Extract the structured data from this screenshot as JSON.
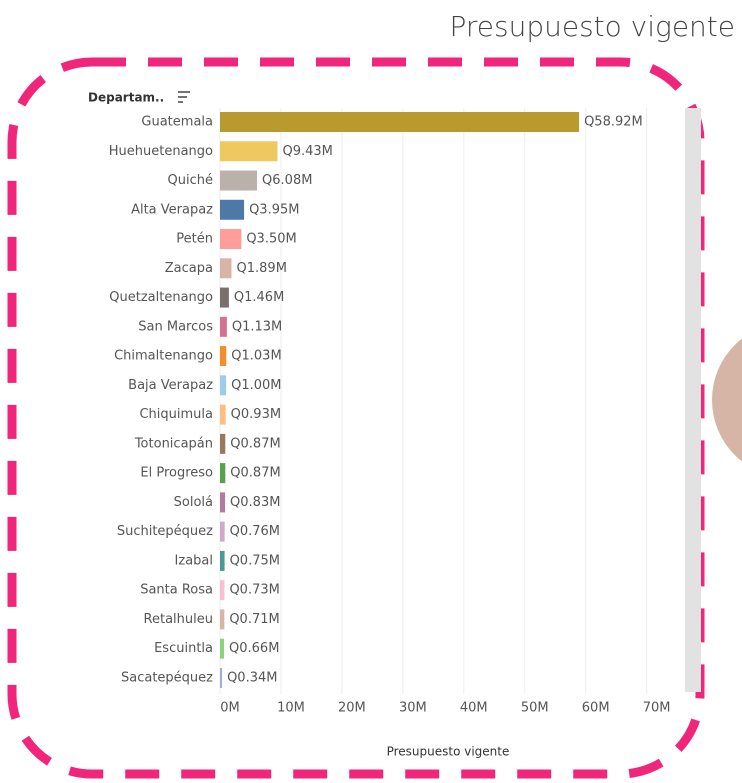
{
  "chart_data": {
    "type": "hbar",
    "title": "Presupuesto vigente",
    "category_header": "Departam..",
    "x_label": "Presupuesto vigente",
    "categories": [
      "Guatemala",
      "Huehuetenango",
      "Quiché",
      "Alta Verapaz",
      "Petén",
      "Zacapa",
      "Quetzaltenango",
      "San Marcos",
      "Chimaltenango",
      "Baja Verapaz",
      "Chiquimula",
      "Totonicapán",
      "El Progreso",
      "Sololá",
      "Suchitepéquez",
      "Izabal",
      "Santa Rosa",
      "Retalhuleu",
      "Escuintla",
      "Sacatepéquez"
    ],
    "values": [
      58.92,
      9.43,
      6.08,
      3.95,
      3.5,
      1.89,
      1.46,
      1.13,
      1.03,
      1.0,
      0.93,
      0.87,
      0.87,
      0.83,
      0.76,
      0.75,
      0.73,
      0.71,
      0.66,
      0.34
    ],
    "value_labels": [
      "Q58.92M",
      "Q9.43M",
      "Q6.08M",
      "Q3.95M",
      "Q3.50M",
      "Q1.89M",
      "Q1.46M",
      "Q1.13M",
      "Q1.03M",
      "Q1.00M",
      "Q0.93M",
      "Q0.87M",
      "Q0.87M",
      "Q0.83M",
      "Q0.76M",
      "Q0.75M",
      "Q0.73M",
      "Q0.71M",
      "Q0.66M",
      "Q0.34M"
    ],
    "colors": [
      "#b89a2e",
      "#f0c860",
      "#bab0ac",
      "#4e79a7",
      "#ff9d9a",
      "#d7b5a6",
      "#79706e",
      "#d37295",
      "#f28e2b",
      "#a0cbe8",
      "#ffbe7d",
      "#9d7660",
      "#59a14f",
      "#b07aa1",
      "#d4a6c8",
      "#499894",
      "#fabfd2",
      "#d7b5a6",
      "#8cd17d",
      "#a0b0d0"
    ],
    "xlim": [
      0,
      74
    ],
    "xticks": [
      {
        "value": 0,
        "label": "0M"
      },
      {
        "value": 10,
        "label": "10M"
      },
      {
        "value": 20,
        "label": "20M"
      },
      {
        "value": 30,
        "label": "30M"
      },
      {
        "value": 40,
        "label": "40M"
      },
      {
        "value": 50,
        "label": "50M"
      },
      {
        "value": 60,
        "label": "60M"
      },
      {
        "value": 70,
        "label": "70M"
      }
    ],
    "grid": true
  }
}
